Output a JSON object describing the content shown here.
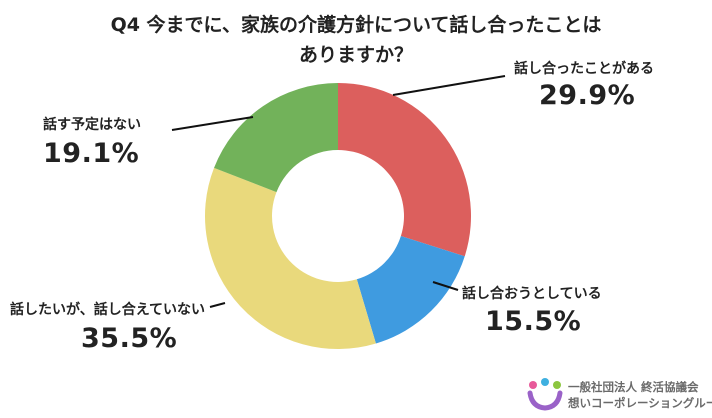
{
  "title_line1": "Q4 今までに、家族の介護方針について話し合ったことは",
  "title_line2": "ありますか？",
  "chart_data": {
    "type": "pie",
    "donut": true,
    "slices": [
      {
        "label": "話し合ったことがある",
        "value": 29.9,
        "display": "29.9%",
        "color": "#dc5f5d"
      },
      {
        "label": "話し合おうとしている",
        "value": 15.5,
        "display": "15.5%",
        "color": "#3f9be0"
      },
      {
        "label": "話したいが、話し合えていない",
        "value": 35.5,
        "display": "35.5%",
        "color": "#e9d97c"
      },
      {
        "label": "話す予定はない",
        "value": 19.1,
        "display": "19.1%",
        "color": "#72b25a"
      }
    ]
  },
  "logo": {
    "line1": "一般社団法人 終活協議会",
    "line2": "想いコーポレーショングループ"
  }
}
